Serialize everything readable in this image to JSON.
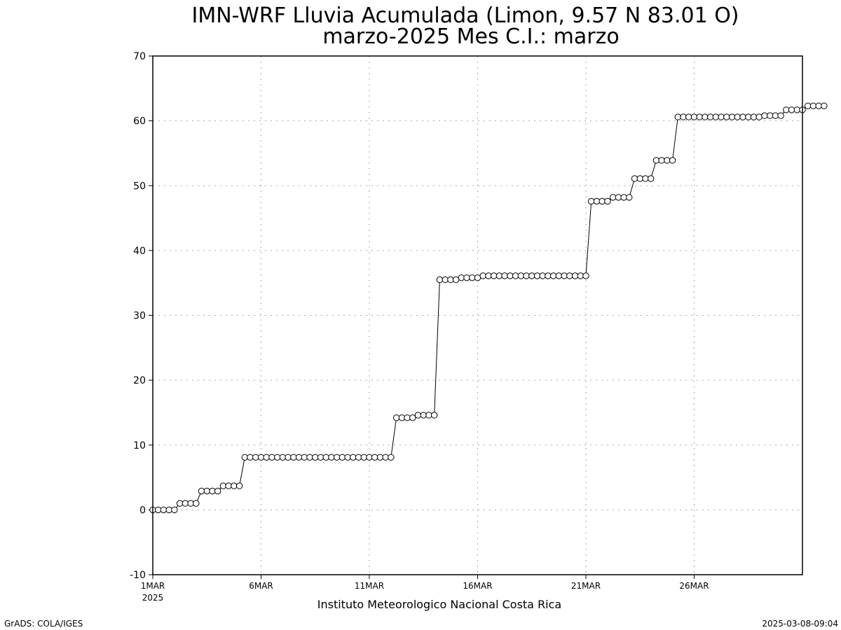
{
  "chart_data": {
    "type": "line",
    "title": "IMN-WRF  Lluvia Acumulada (Limon, 9.57  N 83.01  O)",
    "subtitle": "marzo-2025 Mes C.I.: marzo",
    "xlabel": "Instituto Meteorologico Nacional Costa Rica",
    "ylabel": "",
    "ylim": [
      -10,
      70
    ],
    "yticks": [
      -10,
      0,
      10,
      20,
      30,
      40,
      50,
      60,
      70
    ],
    "xlim": [
      1,
      31
    ],
    "xticks": [
      {
        "day": 1,
        "label": "1MAR",
        "sublabel": "2025"
      },
      {
        "day": 6,
        "label": "6MAR"
      },
      {
        "day": 11,
        "label": "11MAR"
      },
      {
        "day": 16,
        "label": "16MAR"
      },
      {
        "day": 21,
        "label": "21MAR"
      },
      {
        "day": 26,
        "label": "26MAR"
      }
    ],
    "grid": true,
    "marker": "open-circle",
    "step_days": 0.25,
    "series": [
      {
        "values": [
          0.0,
          0.0,
          0.0,
          0.0,
          0.0,
          1.0,
          1.0,
          1.0,
          1.0,
          2.9,
          2.9,
          2.9,
          2.9,
          3.7,
          3.7,
          3.7,
          3.7,
          8.1,
          8.1,
          8.1,
          8.1,
          8.1,
          8.1,
          8.1,
          8.1,
          8.1,
          8.1,
          8.1,
          8.1,
          8.1,
          8.1,
          8.1,
          8.1,
          8.1,
          8.1,
          8.1,
          8.1,
          8.1,
          8.1,
          8.1,
          8.1,
          8.1,
          8.1,
          8.1,
          8.1,
          14.2,
          14.2,
          14.2,
          14.2,
          14.6,
          14.6,
          14.6,
          14.6,
          35.5,
          35.5,
          35.5,
          35.5,
          35.8,
          35.8,
          35.8,
          35.8,
          36.1,
          36.1,
          36.1,
          36.1,
          36.1,
          36.1,
          36.1,
          36.1,
          36.1,
          36.1,
          36.1,
          36.1,
          36.1,
          36.1,
          36.1,
          36.1,
          36.1,
          36.1,
          36.1,
          36.1,
          47.6,
          47.6,
          47.6,
          47.6,
          48.2,
          48.2,
          48.2,
          48.2,
          51.1,
          51.1,
          51.1,
          51.1,
          53.9,
          53.9,
          53.9,
          53.9,
          60.6,
          60.6,
          60.6,
          60.6,
          60.6,
          60.6,
          60.6,
          60.6,
          60.6,
          60.6,
          60.6,
          60.6,
          60.6,
          60.6,
          60.6,
          60.6,
          60.8,
          60.8,
          60.8,
          60.8,
          61.7,
          61.7,
          61.7,
          61.7,
          62.3,
          62.3,
          62.3,
          62.3
        ]
      }
    ]
  },
  "footer": {
    "left": "GrADS: COLA/IGES",
    "right": "2025-03-08-09:04"
  }
}
